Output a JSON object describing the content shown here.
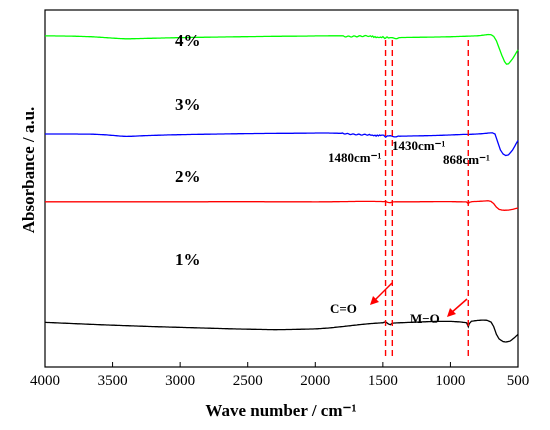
{
  "chart_data": {
    "type": "line",
    "xlabel": "Wave number / cm⁻¹",
    "ylabel": "Absorbance / a.u.",
    "xlim": [
      4000,
      500
    ],
    "x_reversed": true,
    "xticks": [
      4000,
      3500,
      3000,
      2500,
      2000,
      1500,
      1000,
      500
    ],
    "yticks_shown": false,
    "grid": false,
    "legend": "none",
    "series": [
      {
        "name": "1%",
        "color": "#000000",
        "points": [
          [
            4000,
            0.255
          ],
          [
            3800,
            0.24
          ],
          [
            3600,
            0.225
          ],
          [
            3400,
            0.212
          ],
          [
            3200,
            0.2
          ],
          [
            3000,
            0.19
          ],
          [
            2800,
            0.18
          ],
          [
            2600,
            0.17
          ],
          [
            2400,
            0.163
          ],
          [
            2300,
            0.16
          ],
          [
            2200,
            0.162
          ],
          [
            2000,
            0.17
          ],
          [
            1900,
            0.182
          ],
          [
            1800,
            0.2
          ],
          [
            1700,
            0.22
          ],
          [
            1600,
            0.238
          ],
          [
            1500,
            0.25
          ],
          [
            1480,
            0.262
          ],
          [
            1460,
            0.235
          ],
          [
            1445,
            0.225
          ],
          [
            1430,
            0.245
          ],
          [
            1400,
            0.248
          ],
          [
            1300,
            0.255
          ],
          [
            1200,
            0.262
          ],
          [
            1100,
            0.268
          ],
          [
            1000,
            0.268
          ],
          [
            940,
            0.262
          ],
          [
            900,
            0.255
          ],
          [
            880,
            0.25
          ],
          [
            868,
            0.198
          ],
          [
            860,
            0.24
          ],
          [
            845,
            0.27
          ],
          [
            800,
            0.28
          ],
          [
            760,
            0.285
          ],
          [
            730,
            0.282
          ],
          [
            700,
            0.26
          ],
          [
            680,
            0.2
          ],
          [
            660,
            0.1
          ],
          [
            640,
            0.04
          ],
          [
            610,
            0.005
          ],
          [
            590,
            0.0
          ],
          [
            560,
            0.01
          ],
          [
            530,
            0.05
          ],
          [
            500,
            0.1
          ]
        ]
      },
      {
        "name": "2%",
        "color": "#ff0000",
        "points": [
          [
            4000,
            0.45
          ],
          [
            3800,
            0.45
          ],
          [
            3600,
            0.45
          ],
          [
            3400,
            0.45
          ],
          [
            3200,
            0.45
          ],
          [
            3000,
            0.45
          ],
          [
            2700,
            0.452
          ],
          [
            2500,
            0.452
          ],
          [
            2300,
            0.451
          ],
          [
            2100,
            0.45
          ],
          [
            2000,
            0.448
          ],
          [
            1900,
            0.45
          ],
          [
            1800,
            0.455
          ],
          [
            1700,
            0.46
          ],
          [
            1600,
            0.462
          ],
          [
            1520,
            0.458
          ],
          [
            1490,
            0.455
          ],
          [
            1480,
            0.46
          ],
          [
            1465,
            0.435
          ],
          [
            1445,
            0.425
          ],
          [
            1430,
            0.445
          ],
          [
            1400,
            0.45
          ],
          [
            1300,
            0.45
          ],
          [
            1200,
            0.452
          ],
          [
            1100,
            0.455
          ],
          [
            1000,
            0.455
          ],
          [
            940,
            0.45
          ],
          [
            900,
            0.448
          ],
          [
            880,
            0.445
          ],
          [
            868,
            0.395
          ],
          [
            860,
            0.435
          ],
          [
            840,
            0.455
          ],
          [
            800,
            0.46
          ],
          [
            760,
            0.47
          ],
          [
            720,
            0.478
          ],
          [
            700,
            0.46
          ],
          [
            680,
            0.4
          ],
          [
            660,
            0.3
          ],
          [
            640,
            0.24
          ],
          [
            620,
            0.22
          ],
          [
            600,
            0.215
          ],
          [
            570,
            0.22
          ],
          [
            540,
            0.24
          ],
          [
            500,
            0.28
          ]
        ]
      },
      {
        "name": "3%",
        "color": "#0000ff",
        "points": [
          [
            4000,
            0.7
          ],
          [
            3800,
            0.7
          ],
          [
            3650,
            0.698
          ],
          [
            3550,
            0.69
          ],
          [
            3450,
            0.675
          ],
          [
            3400,
            0.67
          ],
          [
            3350,
            0.672
          ],
          [
            3250,
            0.68
          ],
          [
            3100,
            0.688
          ],
          [
            2900,
            0.695
          ],
          [
            2700,
            0.7
          ],
          [
            2500,
            0.705
          ],
          [
            2300,
            0.708
          ],
          [
            2100,
            0.71
          ],
          [
            2000,
            0.712
          ],
          [
            1900,
            0.712
          ],
          [
            1800,
            0.708
          ],
          [
            1700,
            0.7
          ],
          [
            1600,
            0.69
          ],
          [
            1550,
            0.685
          ],
          [
            1500,
            0.68
          ],
          [
            1480,
            0.672
          ],
          [
            1460,
            0.668
          ],
          [
            1430,
            0.665
          ],
          [
            1400,
            0.672
          ],
          [
            1300,
            0.675
          ],
          [
            1200,
            0.678
          ],
          [
            1100,
            0.682
          ],
          [
            1000,
            0.688
          ],
          [
            900,
            0.695
          ],
          [
            868,
            0.695
          ],
          [
            800,
            0.7
          ],
          [
            760,
            0.705
          ],
          [
            720,
            0.712
          ],
          [
            690,
            0.715
          ],
          [
            670,
            0.7
          ],
          [
            650,
            0.6
          ],
          [
            630,
            0.5
          ],
          [
            610,
            0.45
          ],
          [
            590,
            0.43
          ],
          [
            570,
            0.44
          ],
          [
            540,
            0.5
          ],
          [
            500,
            0.62
          ]
        ]
      },
      {
        "name": "4%",
        "color": "#00ff00",
        "points": [
          [
            4000,
            0.935
          ],
          [
            3800,
            0.932
          ],
          [
            3650,
            0.925
          ],
          [
            3550,
            0.915
          ],
          [
            3450,
            0.905
          ],
          [
            3400,
            0.902
          ],
          [
            3350,
            0.903
          ],
          [
            3250,
            0.907
          ],
          [
            3100,
            0.912
          ],
          [
            2900,
            0.918
          ],
          [
            2700,
            0.922
          ],
          [
            2500,
            0.926
          ],
          [
            2300,
            0.93
          ],
          [
            2100,
            0.932
          ],
          [
            2000,
            0.934
          ],
          [
            1900,
            0.935
          ],
          [
            1800,
            0.935
          ],
          [
            1700,
            0.932
          ],
          [
            1600,
            0.928
          ],
          [
            1550,
            0.925
          ],
          [
            1500,
            0.92
          ],
          [
            1480,
            0.915
          ],
          [
            1460,
            0.912
          ],
          [
            1430,
            0.91
          ],
          [
            1400,
            0.915
          ],
          [
            1300,
            0.918
          ],
          [
            1200,
            0.92
          ],
          [
            1100,
            0.922
          ],
          [
            1000,
            0.925
          ],
          [
            900,
            0.93
          ],
          [
            868,
            0.932
          ],
          [
            800,
            0.935
          ],
          [
            760,
            0.942
          ],
          [
            720,
            0.95
          ],
          [
            700,
            0.948
          ],
          [
            680,
            0.93
          ],
          [
            660,
            0.88
          ],
          [
            640,
            0.8
          ],
          [
            620,
            0.72
          ],
          [
            600,
            0.65
          ],
          [
            585,
            0.62
          ],
          [
            570,
            0.625
          ],
          [
            540,
            0.68
          ],
          [
            500,
            0.78
          ]
        ]
      }
    ],
    "noise": {
      "from": 1800,
      "to": 1380,
      "amp": 0.012
    },
    "dashed_lines": [
      {
        "x": 1480,
        "color": "#ff0000"
      },
      {
        "x": 1430,
        "color": "#ff0000"
      },
      {
        "x": 868,
        "color": "#ff0000"
      }
    ],
    "peak_labels": [
      "1480cm⁻¹",
      "1430cm⁻¹",
      "868cm⁻¹"
    ],
    "annotations": [
      "C=O",
      "M−O"
    ]
  }
}
